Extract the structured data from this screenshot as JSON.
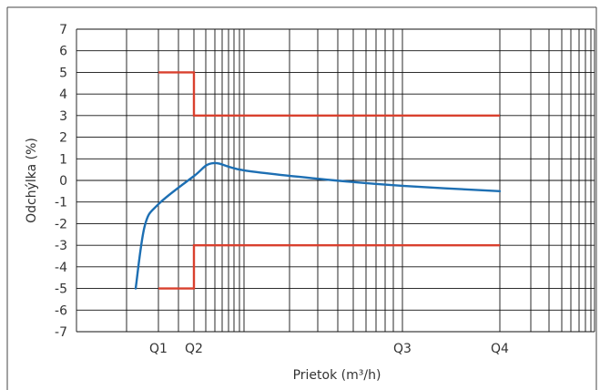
{
  "chart_data": {
    "type": "line",
    "xlabel": "Prietok (m³/h)",
    "ylabel": "Odchýlka (%)",
    "ylim": [
      -7,
      7
    ],
    "x_scale": "log",
    "x_ticks": [
      "Q1",
      "Q2",
      "Q3",
      "Q4"
    ],
    "y_ticks": [
      "7",
      "6",
      "5",
      "4",
      "3",
      "2",
      "1",
      "0",
      "-1",
      "-2",
      "-3",
      "-4",
      "-5",
      "-6",
      "-7"
    ],
    "grid": true,
    "series": [
      {
        "color": "#1d6fb3",
        "points": [
          [
            "below Q1",
            -5.0
          ],
          [
            "near Q1",
            -2.1
          ],
          [
            "Q1",
            -1.1
          ],
          [
            "Q2",
            0.2
          ],
          [
            "between Q2 and Q3 (peak)",
            0.8
          ],
          [
            "between Q2 and Q3",
            0.45
          ],
          [
            "between Q2 and Q3",
            0.0
          ],
          [
            "Q3",
            -0.25
          ],
          [
            "Q4",
            -0.5
          ]
        ]
      },
      {
        "color": "#d9402e",
        "points": [
          [
            "Q1",
            5
          ],
          [
            "Q2",
            5
          ],
          [
            "Q2",
            3
          ],
          [
            "Q4",
            3
          ]
        ]
      },
      {
        "color": "#d9402e",
        "points": [
          [
            "Q1",
            -5
          ],
          [
            "Q2",
            -5
          ],
          [
            "Q2",
            -3
          ],
          [
            "Q4",
            -3
          ]
        ]
      }
    ]
  }
}
